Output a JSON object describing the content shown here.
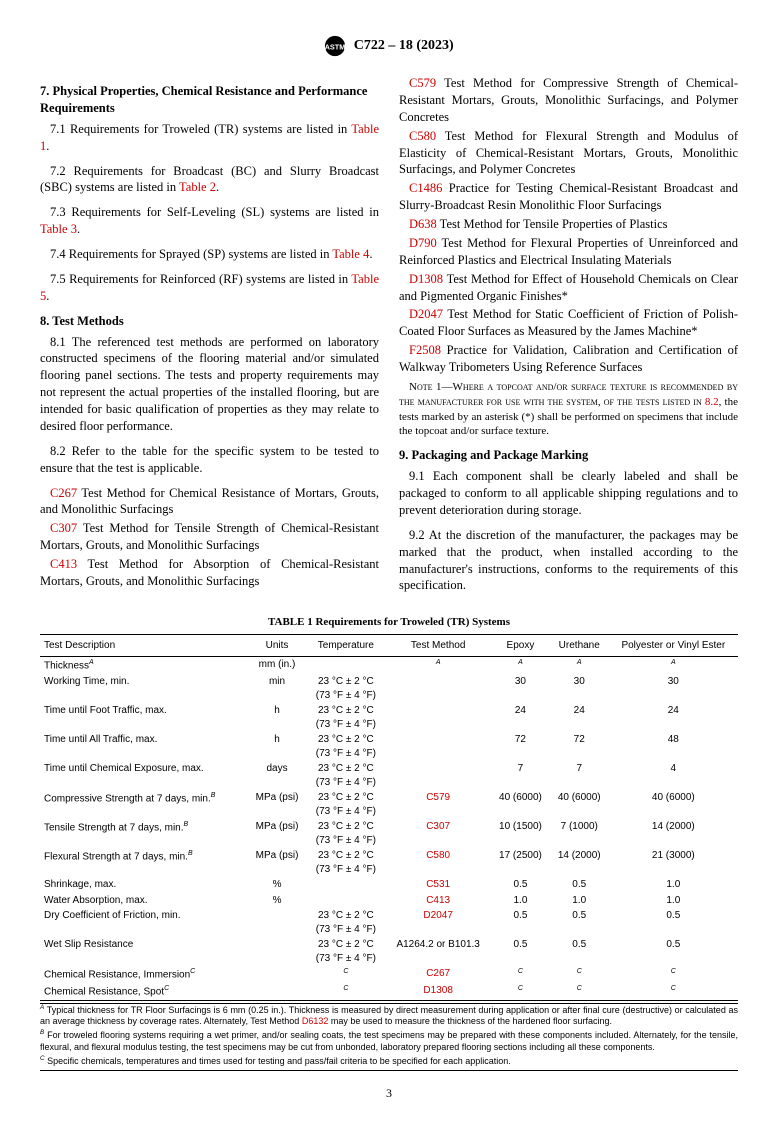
{
  "header": {
    "standard": "C722 – 18 (2023)"
  },
  "sections": {
    "s7": {
      "title": "7.  Physical Properties, Chemical Resistance and Performance Requirements",
      "c71a": "7.1 Requirements for Troweled (TR) systems are listed in ",
      "c71b": "Table 1",
      "c71c": ".",
      "c72a": "7.2 Requirements for Broadcast (BC) and Slurry Broadcast (SBC) systems are listed in ",
      "c72b": "Table 2",
      "c72c": ".",
      "c73a": "7.3 Requirements for Self-Leveling (SL) systems are listed in ",
      "c73b": "Table 3",
      "c73c": ".",
      "c74a": "7.4 Requirements for Sprayed (SP) systems are listed in ",
      "c74b": "Table 4",
      "c74c": ".",
      "c75a": "7.5 Requirements for Reinforced (RF) systems are listed in ",
      "c75b": "Table 5",
      "c75c": "."
    },
    "s8": {
      "title": "8.  Test Methods",
      "c81": "8.1 The referenced test methods are performed on laboratory constructed specimens of the flooring material and/or simulated flooring panel sections. The tests and property requirements may not represent the actual properties of the installed flooring, but are intended for basic qualification of properties as they may relate to desired floor performance.",
      "c82": "8.2 Refer to the table for the specific system to be tested to ensure that the test is applicable.",
      "refs": [
        {
          "code": "C267",
          "desc": " Test Method for Chemical Resistance of Mortars, Grouts, and Monolithic Surfacings"
        },
        {
          "code": "C307",
          "desc": " Test Method for Tensile Strength of Chemical-Resistant Mortars, Grouts, and Monolithic Surfacings"
        },
        {
          "code": "C413",
          "desc": " Test Method for Absorption of Chemical-Resistant Mortars, Grouts, and Monolithic Surfacings"
        },
        {
          "code": "C579",
          "desc": " Test Method for Compressive Strength of Chemical-Resistant Mortars, Grouts, Monolithic Surfacings, and Polymer Concretes"
        },
        {
          "code": "C580",
          "desc": " Test Method for Flexural Strength and Modulus of Elasticity of Chemical-Resistant Mortars, Grouts, Monolithic Surfacings, and Polymer Concretes"
        },
        {
          "code": "C1486",
          "desc": " Practice for Testing Chemical-Resistant Broadcast and Slurry-Broadcast Resin Monolithic Floor Surfacings"
        },
        {
          "code": "D638",
          "desc": " Test Method for Tensile Properties of Plastics"
        },
        {
          "code": "D790",
          "desc": " Test Method for Flexural Properties of Unreinforced and Reinforced Plastics and Electrical Insulating Materials"
        },
        {
          "code": "D1308",
          "desc": " Test Method for Effect of Household Chemicals on Clear and Pigmented Organic Finishes*"
        },
        {
          "code": "D2047",
          "desc": " Test Method for Static Coefficient of Friction of Polish-Coated Floor Surfaces as Measured by the James Machine*"
        },
        {
          "code": "F2508",
          "desc": " Practice for Validation, Calibration and Certification of Walkway Tribometers Using Reference Surfaces"
        }
      ],
      "note1a": "Note 1—Where a topcoat and/or surface texture is recommended by the manufacturer for use with the system, of the tests listed in ",
      "note1b": "8.2",
      "note1c": ", the tests marked by an asterisk (*) shall be performed on specimens that include the topcoat and/or surface texture."
    },
    "s9": {
      "title": "9.  Packaging and Package Marking",
      "c91": "9.1 Each component shall be clearly labeled and shall be packaged to conform to all applicable shipping regulations and to prevent deterioration during storage.",
      "c92": "9.2 At the discretion of the manufacturer, the packages may be marked that the product, when installed according to the manufacturer's instructions, conforms to the requirements of this specification."
    }
  },
  "table1": {
    "title": "TABLE 1 Requirements for Troweled (TR) Systems",
    "headers": [
      "Test Description",
      "Units",
      "Temperature",
      "Test Method",
      "Epoxy",
      "Urethane",
      "Polyester or Vinyl Ester"
    ],
    "temp": {
      "line1": "23 °C ± 2 °C",
      "line2": "(73 °F ± 4 °F)"
    },
    "rows": [
      {
        "desc": "Thickness",
        "sup": "A",
        "units": "mm (in.)",
        "temp": "",
        "method": "",
        "methodRed": false,
        "epoxy": "",
        "ure": "",
        "poly": "",
        "supCols": "A"
      },
      {
        "desc": "Working Time, min.",
        "sup": "",
        "units": "min",
        "temp": "2",
        "method": "",
        "methodRed": false,
        "epoxy": "30",
        "ure": "30",
        "poly": "30"
      },
      {
        "desc": "Time until Foot Traffic, max.",
        "sup": "",
        "units": "h",
        "temp": "2",
        "method": "",
        "methodRed": false,
        "epoxy": "24",
        "ure": "24",
        "poly": "24"
      },
      {
        "desc": "Time until All Traffic, max.",
        "sup": "",
        "units": "h",
        "temp": "2",
        "method": "",
        "methodRed": false,
        "epoxy": "72",
        "ure": "72",
        "poly": "48"
      },
      {
        "desc": "Time until Chemical Exposure, max.",
        "sup": "",
        "units": "days",
        "temp": "2",
        "method": "",
        "methodRed": false,
        "epoxy": "7",
        "ure": "7",
        "poly": "4"
      },
      {
        "desc": "Compressive Strength at 7 days, min.",
        "sup": "B",
        "units": "MPa (psi)",
        "temp": "2",
        "method": "C579",
        "methodRed": true,
        "epoxy": "40 (6000)",
        "ure": "40 (6000)",
        "poly": "40 (6000)"
      },
      {
        "desc": "Tensile Strength at 7 days, min.",
        "sup": "B",
        "units": "MPa (psi)",
        "temp": "2",
        "method": "C307",
        "methodRed": true,
        "epoxy": "10 (1500)",
        "ure": "7 (1000)",
        "poly": "14 (2000)"
      },
      {
        "desc": "Flexural Strength at 7 days, min.",
        "sup": "B",
        "units": "MPa (psi)",
        "temp": "2",
        "method": "C580",
        "methodRed": true,
        "epoxy": "17 (2500)",
        "ure": "14 (2000)",
        "poly": "21 (3000)"
      },
      {
        "desc": "Shrinkage, max.",
        "sup": "",
        "units": "%",
        "temp": "",
        "method": "C531",
        "methodRed": true,
        "epoxy": "0.5",
        "ure": "0.5",
        "poly": "1.0"
      },
      {
        "desc": "Water Absorption, max.",
        "sup": "",
        "units": "%",
        "temp": "",
        "method": "C413",
        "methodRed": true,
        "epoxy": "1.0",
        "ure": "1.0",
        "poly": "1.0"
      },
      {
        "desc": "Dry Coefficient of Friction, min.",
        "sup": "",
        "units": "",
        "temp": "2",
        "method": "D2047",
        "methodRed": true,
        "epoxy": "0.5",
        "ure": "0.5",
        "poly": "0.5"
      },
      {
        "desc": "Wet Slip Resistance",
        "sup": "",
        "units": "",
        "temp": "2",
        "method": "A1264.2 or B101.3",
        "methodRed": false,
        "epoxy": "0.5",
        "ure": "0.5",
        "poly": "0.5"
      },
      {
        "desc": "Chemical Resistance, Immersion",
        "sup": "C",
        "units": "",
        "temp": "",
        "tempSup": "C",
        "method": "C267",
        "methodRed": true,
        "epoxy": "",
        "ure": "",
        "poly": "",
        "supCols": "C"
      },
      {
        "desc": "Chemical Resistance, Spot",
        "sup": "C",
        "units": "",
        "temp": "",
        "tempSup": "C",
        "method": "D1308",
        "methodRed": true,
        "epoxy": "",
        "ure": "",
        "poly": "",
        "supCols": "C"
      }
    ],
    "footnotes": {
      "A1": " Typical thickness for TR Floor Surfacings is 6 mm (0.25 in.). Thickness is measured by direct measurement during application or after final cure (destructive) or calculated as an average thickness by coverage rates. Alternately, Test Method ",
      "A2": "D6132",
      "A3": " may be used to measure the thickness of the hardened floor surfacing.",
      "B": " For troweled flooring systems requiring a wet primer, and/or sealing coats, the test specimens may be prepared with these components included. Alternately, for the tensile, flexural, and flexural modulus testing, the test specimens may be cut from unbonded, laboratory prepared flooring sections including all these components.",
      "C": " Specific chemicals, temperatures and times used for testing and pass/fail criteria to be specified for each application."
    }
  },
  "pagenum": "3"
}
